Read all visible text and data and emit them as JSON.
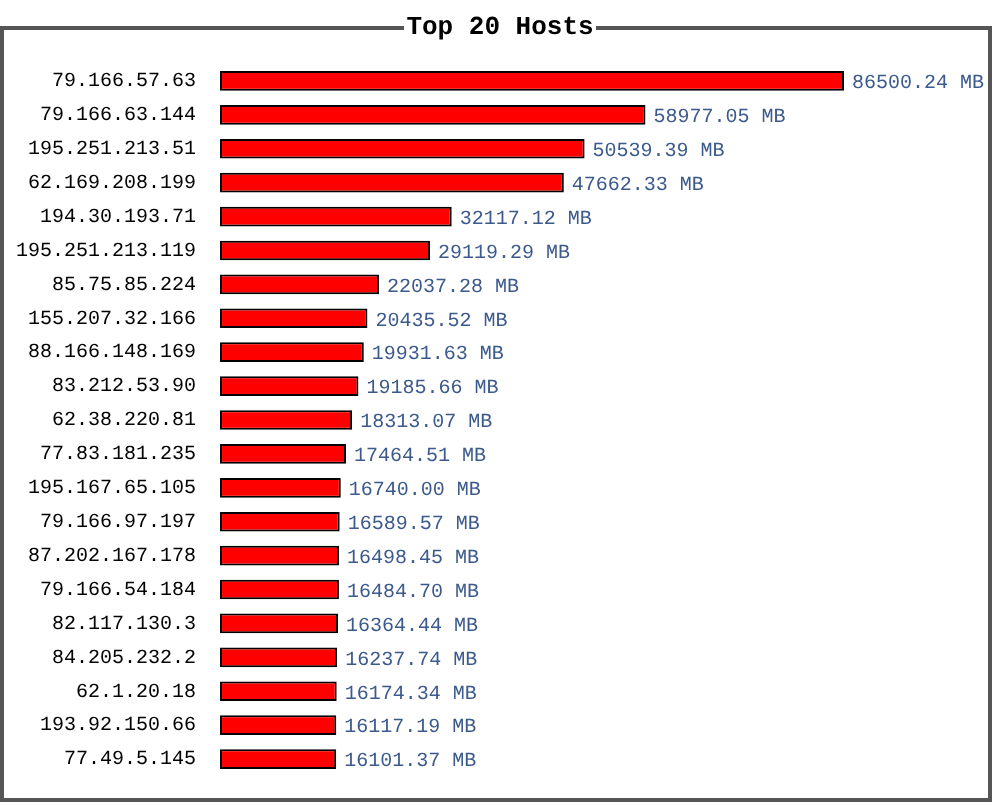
{
  "chart_data": {
    "type": "bar",
    "orientation": "horizontal",
    "title": "Top 20 Hosts",
    "categories": [
      "79.166.57.63",
      "79.166.63.144",
      "195.251.213.51",
      "62.169.208.199",
      "194.30.193.71",
      "195.251.213.119",
      "85.75.85.224",
      "155.207.32.166",
      "88.166.148.169",
      "83.212.53.90",
      "62.38.220.81",
      "77.83.181.235",
      "195.167.65.105",
      "79.166.97.197",
      "87.202.167.178",
      "79.166.54.184",
      "82.117.130.3",
      "84.205.232.2",
      "62.1.20.18",
      "193.92.150.66",
      "77.49.5.145"
    ],
    "values": [
      86500.24,
      58977.05,
      50539.39,
      47662.33,
      32117.12,
      29119.29,
      22037.28,
      20435.52,
      19931.63,
      19185.66,
      18313.07,
      17464.51,
      16740.0,
      16589.57,
      16498.45,
      16484.7,
      16364.44,
      16237.74,
      16174.34,
      16117.19,
      16101.37
    ],
    "value_labels": [
      "86500.24 MB",
      "58977.05 MB",
      "50539.39 MB",
      "47662.33 MB",
      "32117.12 MB",
      "29119.29 MB",
      "22037.28 MB",
      "20435.52 MB",
      "19931.63 MB",
      "19185.66 MB",
      "18313.07 MB",
      "17464.51 MB",
      "16740.00 MB",
      "16589.57 MB",
      "16498.45 MB",
      "16484.70 MB",
      "16364.44 MB",
      "16237.74 MB",
      "16174.34 MB",
      "16117.19 MB",
      "16101.37 MB"
    ],
    "color": "#ff0000"
  }
}
